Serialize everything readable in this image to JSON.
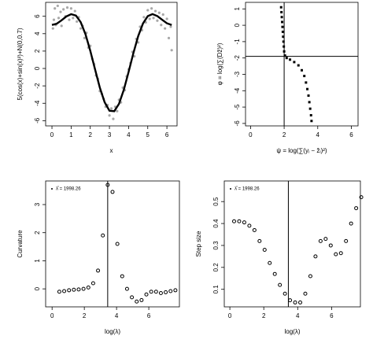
{
  "chart_data": [
    {
      "type": "scatter",
      "xlabel": "x",
      "ylabel": "5(cos(x)+sin(x)²)+N(0,0.7)",
      "xlim": [
        -0.33,
        6.53
      ],
      "ylim": [
        -6.6,
        7.6
      ],
      "xticks": [
        0,
        1,
        2,
        3,
        4,
        5,
        6
      ],
      "yticks": [
        -6,
        -4,
        -2,
        0,
        2,
        4,
        6
      ],
      "series": [
        {
          "style": "points",
          "color": "#a8a8a8",
          "x": [
            0.05,
            0.1,
            0.15,
            0.2,
            0.3,
            0.35,
            0.45,
            0.5,
            0.6,
            0.7,
            0.8,
            0.9,
            1.0,
            1.1,
            1.2,
            1.3,
            1.4,
            1.5,
            1.6,
            1.7,
            1.8,
            1.9,
            2.0,
            2.1,
            2.2,
            2.3,
            2.4,
            2.5,
            2.6,
            2.7,
            2.8,
            2.9,
            3.0,
            3.1,
            3.2,
            3.3,
            3.4,
            3.5,
            3.6,
            3.7,
            3.8,
            3.9,
            4.0,
            4.1,
            4.2,
            4.3,
            4.4,
            4.5,
            4.6,
            4.7,
            4.8,
            4.9,
            5.0,
            5.1,
            5.2,
            5.3,
            5.4,
            5.5,
            5.6,
            5.7,
            5.8,
            5.9,
            6.0,
            6.1,
            6.2,
            6.25
          ],
          "values": [
            4.6,
            5.6,
            6.9,
            5.0,
            7.2,
            5.8,
            6.5,
            4.9,
            6.8,
            6.0,
            7.0,
            5.6,
            6.9,
            5.8,
            6.6,
            5.4,
            5.9,
            4.6,
            4.9,
            3.5,
            4.1,
            2.4,
            2.6,
            1.1,
            0.5,
            -0.8,
            -1.2,
            -2.6,
            -2.9,
            -3.5,
            -4.4,
            -4.2,
            -5.4,
            -4.6,
            -5.8,
            -4.4,
            -4.9,
            -3.6,
            -3.9,
            -2.2,
            -2.5,
            -0.9,
            -0.1,
            0.6,
            1.9,
            1.4,
            3.4,
            3.0,
            4.8,
            4.4,
            5.9,
            5.3,
            6.7,
            5.7,
            6.9,
            5.8,
            6.6,
            5.5,
            6.4,
            5.0,
            6.2,
            4.6,
            5.7,
            3.5,
            4.8,
            2.1
          ]
        },
        {
          "style": "line",
          "color": "#000000",
          "x": [
            0,
            0.25,
            0.5,
            0.75,
            1.0,
            1.25,
            1.5,
            1.75,
            2.0,
            2.25,
            2.5,
            2.75,
            3.0,
            3.25,
            3.5,
            3.75,
            4.0,
            4.25,
            4.5,
            4.75,
            5.0,
            5.25,
            5.5,
            5.75,
            6.0,
            6.25
          ],
          "values": [
            5,
            5.15,
            5.54,
            5.98,
            6.24,
            6.08,
            5.33,
            3.95,
            2.05,
            -0.11,
            -2.21,
            -3.89,
            -4.85,
            -4.91,
            -4.07,
            -2.47,
            -0.4,
            1.77,
            3.72,
            5.18,
            6.02,
            6.25,
            6.03,
            5.6,
            5.19,
            5.0
          ]
        }
      ]
    },
    {
      "type": "scatter",
      "xlabel": "ψ = log(∑(yᵢ − ẑᵢ)²)",
      "ylabel": "φ = log(∑(Dẑ)²)",
      "xlim": [
        -0.3,
        6.4
      ],
      "ylim": [
        -6.15,
        1.4
      ],
      "xticks": [
        0,
        2,
        4,
        6
      ],
      "yticks": [
        -6,
        -5,
        -4,
        -3,
        -2,
        -1,
        0,
        1
      ],
      "vline": 2,
      "hline": -1.9,
      "series": [
        {
          "style": "squares",
          "color": "#000000",
          "x": [
            1.82,
            1.84,
            1.86,
            1.88,
            1.9,
            1.92,
            1.94,
            1.96,
            1.98,
            2.0,
            2.05,
            2.15,
            2.35,
            2.6,
            2.85,
            3.05,
            3.2,
            3.3,
            3.38,
            3.45,
            3.5,
            3.55,
            3.6,
            3.63
          ],
          "values": [
            1.1,
            0.8,
            0.5,
            0.2,
            -0.1,
            -0.4,
            -0.7,
            -1.0,
            -1.3,
            -1.6,
            -1.85,
            -2.0,
            -2.1,
            -2.25,
            -2.45,
            -2.75,
            -3.1,
            -3.5,
            -3.9,
            -4.3,
            -4.7,
            -5.1,
            -5.5,
            -5.85
          ]
        }
      ]
    },
    {
      "type": "scatter",
      "xlabel": "log(λ)",
      "ylabel": "Curvature",
      "annotation": "λ̂ = 1998.26",
      "xlim": [
        -0.4,
        7.9
      ],
      "ylim": [
        -0.64,
        3.84
      ],
      "xticks": [
        0,
        2,
        4,
        6
      ],
      "yticks": [
        0,
        1,
        2,
        3
      ],
      "vline": 3.45,
      "series": [
        {
          "style": "circles",
          "color": "#000000",
          "x": [
            0.45,
            0.75,
            1.05,
            1.35,
            1.65,
            1.95,
            2.25,
            2.55,
            2.85,
            3.15,
            3.45,
            3.75,
            4.05,
            4.35,
            4.65,
            4.95,
            5.25,
            5.55,
            5.85,
            6.15,
            6.45,
            6.75,
            7.05,
            7.35,
            7.65
          ],
          "values": [
            -0.1,
            -0.08,
            -0.05,
            -0.03,
            -0.02,
            0,
            0.05,
            0.2,
            0.65,
            1.9,
            3.7,
            3.45,
            1.6,
            0.45,
            0,
            -0.3,
            -0.45,
            -0.4,
            -0.2,
            -0.1,
            -0.1,
            -0.15,
            -0.12,
            -0.08,
            -0.05
          ]
        }
      ]
    },
    {
      "type": "scatter",
      "xlabel": "log(λ)",
      "ylabel": "Step size",
      "annotation": "λ̂ = 1998.26",
      "xlim": [
        -0.33,
        7.7
      ],
      "ylim": [
        0.02,
        0.594
      ],
      "xticks": [
        0,
        2,
        4,
        6
      ],
      "yticks": [
        0.1,
        0.2,
        0.3,
        0.4,
        0.5
      ],
      "vline": 3.45,
      "series": [
        {
          "style": "circles",
          "color": "#000000",
          "x": [
            0.25,
            0.55,
            0.85,
            1.15,
            1.45,
            1.75,
            2.05,
            2.35,
            2.65,
            2.95,
            3.25,
            3.55,
            3.85,
            4.15,
            4.45,
            4.75,
            5.05,
            5.35,
            5.65,
            5.95,
            6.25,
            6.55,
            6.85,
            7.15,
            7.45,
            7.75
          ],
          "values": [
            0.41,
            0.41,
            0.405,
            0.39,
            0.37,
            0.32,
            0.28,
            0.22,
            0.17,
            0.12,
            0.08,
            0.05,
            0.04,
            0.04,
            0.08,
            0.16,
            0.25,
            0.32,
            0.33,
            0.3,
            0.26,
            0.265,
            0.32,
            0.4,
            0.47,
            0.52
          ]
        }
      ]
    }
  ]
}
